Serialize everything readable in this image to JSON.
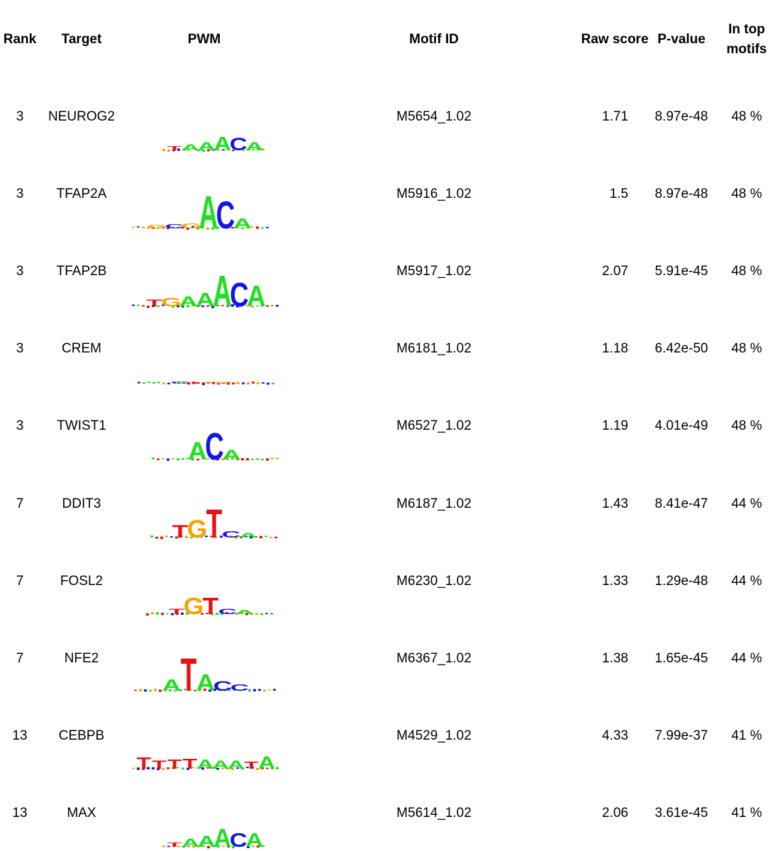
{
  "headers": {
    "rank": "Rank",
    "target": "Target",
    "pwm": "PWM",
    "motif_id": "Motif ID",
    "raw_score": "Raw score",
    "p_value": "P-value",
    "in_top_line1": "In top",
    "in_top_line2": "motifs"
  },
  "colors": {
    "A": "#1ee01e",
    "C": "#1515e6",
    "G": "#f5a300",
    "T": "#e81010"
  },
  "rows": [
    {
      "rank": "3",
      "target": "NEUROG2",
      "motif_id": "M5654_1.02",
      "raw_score": "1.71",
      "p_value": "8.97e-48",
      "in_top": "48 %"
    },
    {
      "rank": "3",
      "target": "TFAP2A",
      "motif_id": "M5916_1.02",
      "raw_score": "1.5",
      "p_value": "8.97e-48",
      "in_top": "48 %"
    },
    {
      "rank": "3",
      "target": "TFAP2B",
      "motif_id": "M5917_1.02",
      "raw_score": "2.07",
      "p_value": "5.91e-45",
      "in_top": "48 %"
    },
    {
      "rank": "3",
      "target": "CREM",
      "motif_id": "M6181_1.02",
      "raw_score": "1.18",
      "p_value": "6.42e-50",
      "in_top": "48 %"
    },
    {
      "rank": "3",
      "target": "TWIST1",
      "motif_id": "M6527_1.02",
      "raw_score": "1.19",
      "p_value": "4.01e-49",
      "in_top": "48 %"
    },
    {
      "rank": "7",
      "target": "DDIT3",
      "motif_id": "M6187_1.02",
      "raw_score": "1.43",
      "p_value": "8.41e-47",
      "in_top": "44 %"
    },
    {
      "rank": "7",
      "target": "FOSL2",
      "motif_id": "M6230_1.02",
      "raw_score": "1.33",
      "p_value": "1.29e-48",
      "in_top": "44 %"
    },
    {
      "rank": "7",
      "target": "NFE2",
      "motif_id": "M6367_1.02",
      "raw_score": "1.38",
      "p_value": "1.65e-45",
      "in_top": "44 %"
    },
    {
      "rank": "13",
      "target": "CEBPB",
      "motif_id": "M4529_1.02",
      "raw_score": "4.33",
      "p_value": "7.99e-37",
      "in_top": "41 %"
    },
    {
      "rank": "13",
      "target": "MAX",
      "motif_id": "M5614_1.02",
      "raw_score": "2.06",
      "p_value": "3.61e-45",
      "in_top": "41 %"
    }
  ],
  "logos": [
    {
      "letters": [
        "T",
        "A",
        "A",
        "A",
        "C",
        "A"
      ],
      "heights": [
        0.15,
        0.22,
        0.3,
        0.5,
        0.45,
        0.3
      ]
    },
    {
      "letters": [
        "G",
        "C",
        "G",
        "A",
        "C",
        "A"
      ],
      "heights": [
        0.1,
        0.12,
        0.15,
        0.95,
        0.8,
        0.3
      ]
    },
    {
      "letters": [
        "T",
        "G",
        "A",
        "A",
        "A",
        "C",
        "A"
      ],
      "heights": [
        0.2,
        0.25,
        0.3,
        0.4,
        0.9,
        0.7,
        0.6
      ]
    },
    {
      "letters": [
        "C",
        "T",
        "G",
        "G"
      ],
      "heights": [
        0.15,
        0.1,
        0.15,
        0.12
      ]
    },
    {
      "letters": [
        "A",
        "C",
        "A"
      ],
      "heights": [
        0.55,
        0.85,
        0.3
      ]
    },
    {
      "letters": [
        "T",
        "G",
        "T",
        "C",
        "A"
      ],
      "heights": [
        0.4,
        0.55,
        0.9,
        0.2,
        0.15
      ]
    },
    {
      "letters": [
        "T",
        "G",
        "T",
        "C",
        "A"
      ],
      "heights": [
        0.2,
        0.6,
        0.6,
        0.2,
        0.15
      ]
    },
    {
      "letters": [
        "A",
        "T",
        "A",
        "C",
        "C"
      ],
      "heights": [
        0.35,
        1.0,
        0.5,
        0.3,
        0.2
      ]
    },
    {
      "letters": [
        "T",
        "T",
        "T",
        "T",
        "A",
        "A",
        "A",
        "T",
        "A"
      ],
      "heights": [
        0.55,
        0.4,
        0.45,
        0.5,
        0.45,
        0.4,
        0.4,
        0.35,
        0.6
      ]
    },
    {
      "letters": [
        "T",
        "A",
        "A",
        "A",
        "C",
        "A"
      ],
      "heights": [
        0.15,
        0.3,
        0.4,
        0.65,
        0.5,
        0.5
      ]
    }
  ]
}
